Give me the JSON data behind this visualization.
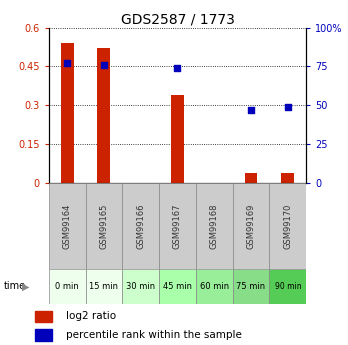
{
  "title": "GDS2587 / 1773",
  "samples": [
    "GSM99164",
    "GSM99165",
    "GSM99166",
    "GSM99167",
    "GSM99168",
    "GSM99169",
    "GSM99170"
  ],
  "time_labels": [
    "0 min",
    "15 min",
    "30 min",
    "45 min",
    "60 min",
    "75 min",
    "90 min"
  ],
  "time_colors": [
    "#eeffee",
    "#eeffee",
    "#ccffcc",
    "#aaffaa",
    "#99ee99",
    "#88dd88",
    "#55cc55"
  ],
  "log2_ratio": [
    0.54,
    0.52,
    0.0,
    0.34,
    0.0,
    0.04,
    0.04
  ],
  "percentile_rank": [
    77,
    76,
    0,
    74,
    0,
    47,
    49
  ],
  "bar_color": "#cc2200",
  "dot_color": "#0000bb",
  "left_ylim": [
    0,
    0.6
  ],
  "right_ylim": [
    0,
    100
  ],
  "left_yticks": [
    0,
    0.15,
    0.3,
    0.45,
    0.6
  ],
  "right_yticks": [
    0,
    25,
    50,
    75,
    100
  ],
  "left_yticklabels": [
    "0",
    "0.15",
    "0.3",
    "0.45",
    "0.6"
  ],
  "right_yticklabels": [
    "0",
    "25",
    "50",
    "75",
    "100%"
  ],
  "sample_bg_color": "#cccccc",
  "legend_log2": "log2 ratio",
  "legend_pct": "percentile rank within the sample",
  "bar_width": 0.35,
  "dot_size": 25
}
